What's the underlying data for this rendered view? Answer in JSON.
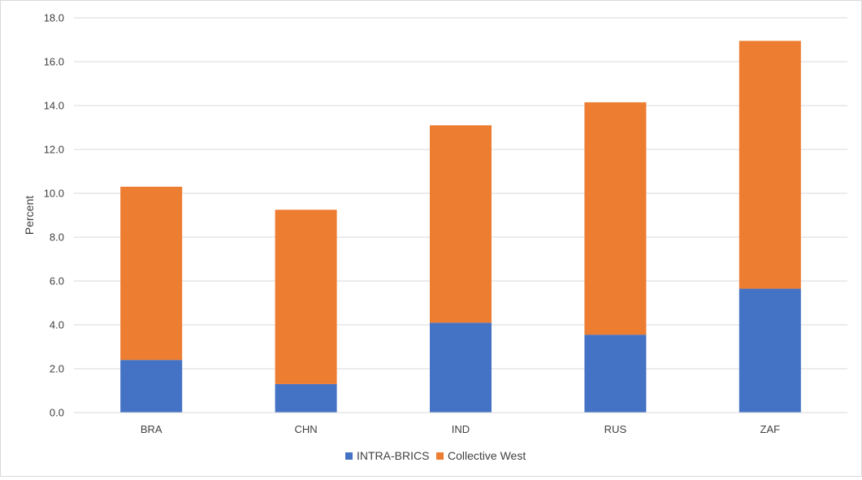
{
  "chart_data": {
    "type": "bar",
    "stacked": true,
    "title": "",
    "xlabel": "",
    "ylabel": "Percent",
    "categories": [
      "BRA",
      "CHN",
      "IND",
      "RUS",
      "ZAF"
    ],
    "series": [
      {
        "name": "INTRA-BRICS",
        "color": "#4472c4",
        "values": [
          2.4,
          1.3,
          4.1,
          3.55,
          5.65
        ]
      },
      {
        "name": "Collective West",
        "color": "#ed7d31",
        "values": [
          7.9,
          7.95,
          9.0,
          10.6,
          11.3
        ]
      }
    ],
    "ylim": [
      0,
      18
    ],
    "yticks": [
      "0.0",
      "2.0",
      "4.0",
      "6.0",
      "8.0",
      "10.0",
      "12.0",
      "14.0",
      "16.0",
      "18.0"
    ],
    "grid": true,
    "legend_position": "bottom"
  }
}
